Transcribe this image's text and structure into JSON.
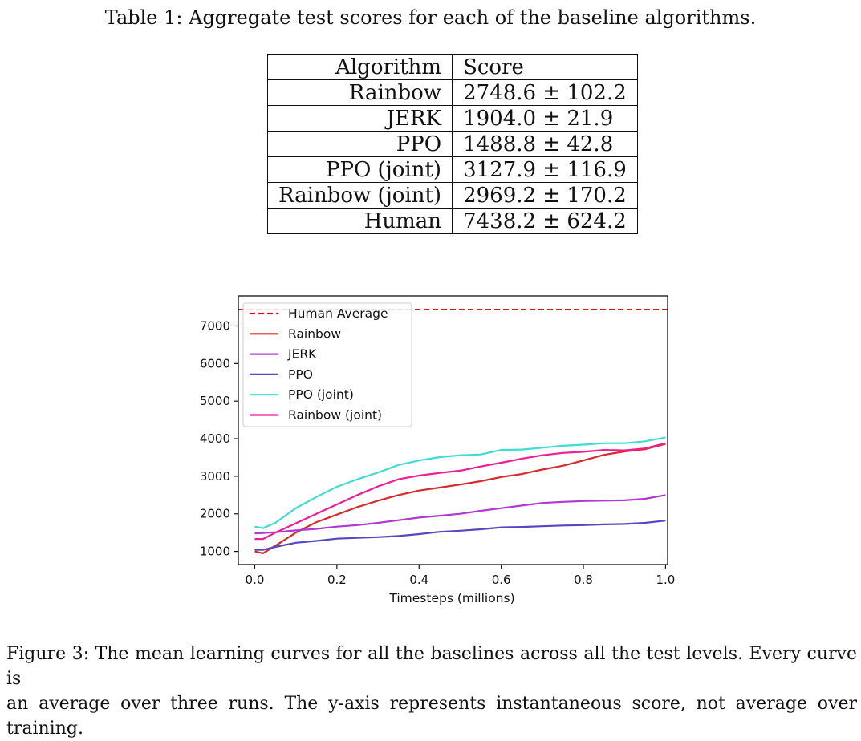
{
  "table": {
    "caption": "Table 1: Aggregate test scores for each of the baseline algorithms.",
    "headers": [
      "Algorithm",
      "Score"
    ],
    "rows": [
      {
        "algorithm": "Rainbow",
        "score": "2748.6 ± 102.2"
      },
      {
        "algorithm": "JERK",
        "score": "1904.0 ± 21.9"
      },
      {
        "algorithm": "PPO",
        "score": "1488.8 ± 42.8"
      },
      {
        "algorithm": "PPO (joint)",
        "score": "3127.9 ± 116.9"
      },
      {
        "algorithm": "Rainbow (joint)",
        "score": "2969.2 ± 170.2"
      },
      {
        "algorithm": "Human",
        "score": "7438.2 ± 624.2"
      }
    ]
  },
  "chart_data": {
    "type": "line",
    "xlabel": "Timesteps (millions)",
    "ylabel": "",
    "xlim": [
      -0.04,
      1.005
    ],
    "ylim": [
      650,
      7800
    ],
    "xticks": [
      "0.0",
      "0.2",
      "0.4",
      "0.6",
      "0.8",
      "1.0"
    ],
    "yticks": [
      "1000",
      "2000",
      "3000",
      "4000",
      "5000",
      "6000",
      "7000"
    ],
    "legend_position": "top-left",
    "reference_line": {
      "name": "Human Average",
      "y": 7438.2,
      "color": "#e01010",
      "style": "dashed"
    },
    "x": [
      0.0,
      0.02,
      0.05,
      0.1,
      0.15,
      0.2,
      0.25,
      0.3,
      0.35,
      0.4,
      0.45,
      0.5,
      0.55,
      0.6,
      0.65,
      0.7,
      0.75,
      0.8,
      0.85,
      0.9,
      0.95,
      1.0
    ],
    "series": [
      {
        "name": "Rainbow",
        "color": "#d62c2c",
        "values": [
          1000,
          950,
          1150,
          1500,
          1780,
          1980,
          2180,
          2350,
          2500,
          2620,
          2700,
          2780,
          2870,
          2980,
          3060,
          3180,
          3280,
          3420,
          3570,
          3660,
          3720,
          3860
        ]
      },
      {
        "name": "JERK",
        "color": "#b03ad0",
        "values": [
          1480,
          1490,
          1510,
          1560,
          1600,
          1660,
          1700,
          1760,
          1830,
          1900,
          1950,
          2000,
          2080,
          2150,
          2220,
          2290,
          2320,
          2340,
          2350,
          2360,
          2400,
          2500
        ]
      },
      {
        "name": "PPO",
        "color": "#5548c0",
        "values": [
          1040,
          1040,
          1120,
          1230,
          1280,
          1340,
          1360,
          1380,
          1410,
          1460,
          1520,
          1550,
          1590,
          1640,
          1650,
          1670,
          1690,
          1700,
          1720,
          1730,
          1760,
          1820
        ]
      },
      {
        "name": "PPO (joint)",
        "color": "#3fdcd4",
        "values": [
          1660,
          1620,
          1760,
          2150,
          2450,
          2720,
          2920,
          3100,
          3300,
          3420,
          3510,
          3560,
          3580,
          3700,
          3710,
          3760,
          3810,
          3840,
          3880,
          3880,
          3930,
          4030
        ]
      },
      {
        "name": "Rainbow (joint)",
        "color": "#ee1e96",
        "values": [
          1330,
          1330,
          1500,
          1750,
          2000,
          2250,
          2500,
          2730,
          2920,
          3020,
          3090,
          3150,
          3260,
          3360,
          3470,
          3560,
          3620,
          3650,
          3700,
          3690,
          3740,
          3880
        ]
      }
    ]
  },
  "figure": {
    "caption_line1": "Figure 3: The mean learning curves for all the baselines across all the test levels. Every curve is",
    "caption_line2": "an average over three runs. The y-axis represents instantaneous score, not average over training."
  }
}
